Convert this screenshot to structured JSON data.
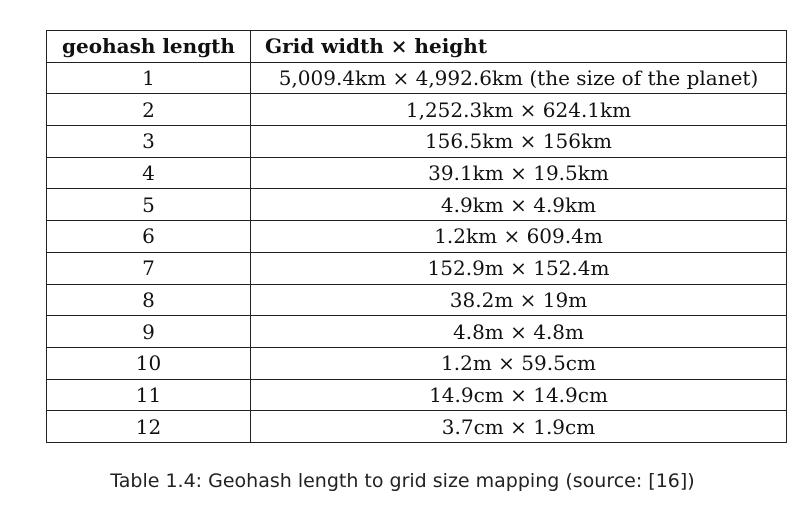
{
  "table": {
    "headers": [
      "geohash length",
      "Grid width × height"
    ],
    "rows": [
      [
        "1",
        "5,009.4km × 4,992.6km (the size of the planet)"
      ],
      [
        "2",
        "1,252.3km × 624.1km"
      ],
      [
        "3",
        "156.5km × 156km"
      ],
      [
        "4",
        "39.1km × 19.5km"
      ],
      [
        "5",
        "4.9km × 4.9km"
      ],
      [
        "6",
        "1.2km × 609.4m"
      ],
      [
        "7",
        "152.9m × 152.4m"
      ],
      [
        "8",
        "38.2m × 19m"
      ],
      [
        "9",
        "4.8m × 4.8m"
      ],
      [
        "10",
        "1.2m × 59.5cm"
      ],
      [
        "11",
        "14.9cm × 14.9cm"
      ],
      [
        "12",
        "3.7cm × 1.9cm"
      ]
    ]
  },
  "caption": "Table 1.4: Geohash length to grid size mapping (source: [16])"
}
